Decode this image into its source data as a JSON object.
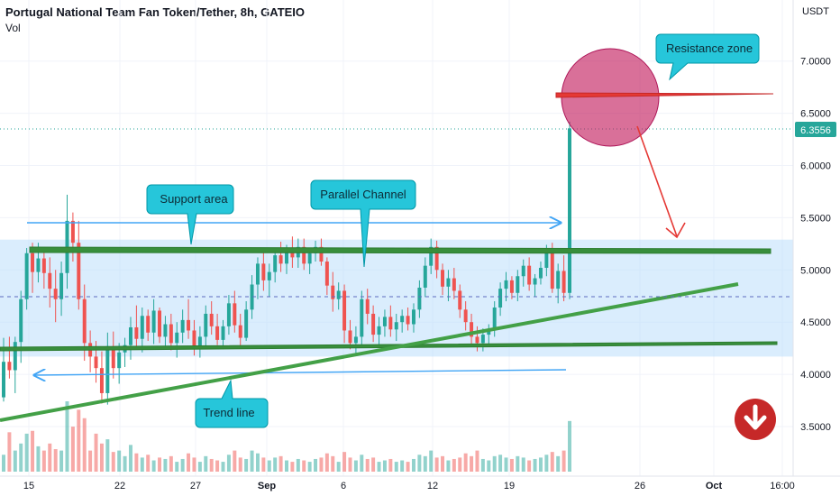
{
  "header": {
    "title": "Portugal National Team Fan Token/Tether, 8h, GATEIO",
    "volume_label": "Vol"
  },
  "axis": {
    "currency": "USDT",
    "y_ticks": [
      "7.0000",
      "6.5000",
      "6.0000",
      "5.5000",
      "5.0000",
      "4.5000",
      "4.0000",
      "3.5000"
    ],
    "x_ticks": [
      "15",
      "22",
      "27",
      "Sep",
      "6",
      "12",
      "19",
      "26",
      "Oct",
      "16:00"
    ],
    "last_price": "6.3556"
  },
  "annotations": {
    "resistance": "Resistance zone",
    "support": "Support area",
    "channel": "Parallel Channel",
    "trend": "Trend line"
  },
  "colors": {
    "up": "#26a69a",
    "down": "#ef5350",
    "channel_line": "#388e3c",
    "callout_bg": "#26c6da",
    "channel_fill": "#bbdefb",
    "circle": "#c2185b",
    "arrow": "#e53935",
    "price_tag": "#26a69a",
    "badge": "#c62828"
  },
  "icons": {
    "bearish_badge": "arrow-down-icon"
  },
  "chart_data": {
    "type": "candlestick",
    "title": "Portugal National Team Fan Token/Tether, 8h, GATEIO",
    "interval": "8h",
    "ylim": [
      3.0,
      7.3
    ],
    "x_ticks": [
      "15",
      "22",
      "27",
      "Sep",
      "6",
      "12",
      "19",
      "26",
      "Oct",
      "16:00"
    ],
    "last_close": 6.3556,
    "candles": [
      [
        3.78,
        4.35,
        3.74,
        4.12,
        "up"
      ],
      [
        4.12,
        4.36,
        3.96,
        4.04,
        "dn"
      ],
      [
        4.04,
        4.36,
        3.82,
        4.31,
        "up"
      ],
      [
        4.31,
        4.8,
        4.11,
        4.72,
        "up"
      ],
      [
        4.72,
        5.21,
        4.62,
        5.16,
        "up"
      ],
      [
        5.16,
        5.26,
        4.78,
        4.98,
        "dn"
      ],
      [
        4.98,
        5.26,
        4.88,
        5.11,
        "up"
      ],
      [
        5.11,
        5.22,
        4.82,
        4.97,
        "dn"
      ],
      [
        4.97,
        5.12,
        4.64,
        4.82,
        "dn"
      ],
      [
        4.82,
        5.0,
        4.5,
        4.72,
        "dn"
      ],
      [
        4.72,
        5.08,
        4.56,
        4.97,
        "up"
      ],
      [
        4.97,
        5.72,
        4.82,
        5.47,
        "up"
      ],
      [
        5.47,
        5.55,
        5.08,
        5.26,
        "dn"
      ],
      [
        5.26,
        5.47,
        4.62,
        4.72,
        "dn"
      ],
      [
        4.72,
        4.86,
        4.13,
        4.3,
        "dn"
      ],
      [
        4.3,
        4.42,
        4.02,
        4.17,
        "dn"
      ],
      [
        4.17,
        4.32,
        3.92,
        4.06,
        "dn"
      ],
      [
        4.06,
        4.22,
        3.72,
        3.82,
        "dn"
      ],
      [
        3.82,
        4.4,
        3.71,
        4.27,
        "up"
      ],
      [
        4.27,
        4.41,
        3.96,
        4.06,
        "dn"
      ],
      [
        4.06,
        4.3,
        3.91,
        4.21,
        "up"
      ],
      [
        4.21,
        4.35,
        4.07,
        4.28,
        "up"
      ],
      [
        4.28,
        4.55,
        4.14,
        4.45,
        "up"
      ],
      [
        4.45,
        4.66,
        4.24,
        4.34,
        "dn"
      ],
      [
        4.34,
        4.64,
        4.21,
        4.56,
        "up"
      ],
      [
        4.56,
        4.62,
        4.32,
        4.4,
        "dn"
      ],
      [
        4.4,
        4.72,
        4.29,
        4.61,
        "up"
      ],
      [
        4.61,
        4.64,
        4.3,
        4.36,
        "dn"
      ],
      [
        4.36,
        4.56,
        4.24,
        4.48,
        "up"
      ],
      [
        4.48,
        4.58,
        4.23,
        4.3,
        "dn"
      ],
      [
        4.3,
        4.5,
        4.16,
        4.4,
        "up"
      ],
      [
        4.4,
        4.62,
        4.3,
        4.52,
        "up"
      ],
      [
        4.52,
        4.72,
        4.34,
        4.42,
        "dn"
      ],
      [
        4.42,
        4.52,
        4.18,
        4.26,
        "dn"
      ],
      [
        4.26,
        4.46,
        4.16,
        4.36,
        "up"
      ],
      [
        4.36,
        4.66,
        4.27,
        4.58,
        "up"
      ],
      [
        4.58,
        4.7,
        4.38,
        4.46,
        "dn"
      ],
      [
        4.46,
        4.58,
        4.28,
        4.33,
        "dn"
      ],
      [
        4.33,
        4.52,
        4.24,
        4.46,
        "up"
      ],
      [
        4.46,
        4.76,
        4.38,
        4.68,
        "up"
      ],
      [
        4.68,
        4.8,
        4.4,
        4.47,
        "dn"
      ],
      [
        4.47,
        4.58,
        4.26,
        4.35,
        "dn"
      ],
      [
        4.35,
        4.7,
        4.32,
        4.62,
        "up"
      ],
      [
        4.62,
        4.95,
        4.53,
        4.86,
        "up"
      ],
      [
        4.86,
        5.12,
        4.72,
        5.06,
        "up"
      ],
      [
        5.06,
        5.18,
        4.8,
        4.9,
        "dn"
      ],
      [
        4.9,
        5.06,
        4.74,
        4.98,
        "up"
      ],
      [
        4.98,
        5.2,
        4.88,
        5.14,
        "up"
      ],
      [
        5.14,
        5.27,
        4.98,
        5.06,
        "dn"
      ],
      [
        5.06,
        5.24,
        4.96,
        5.18,
        "up"
      ],
      [
        5.18,
        5.32,
        5.02,
        5.12,
        "dn"
      ],
      [
        5.12,
        5.3,
        5.02,
        5.22,
        "up"
      ],
      [
        5.22,
        5.3,
        5.0,
        5.06,
        "dn"
      ],
      [
        5.06,
        5.21,
        4.96,
        5.16,
        "up"
      ],
      [
        5.16,
        5.28,
        5.08,
        5.22,
        "up"
      ],
      [
        5.22,
        5.3,
        5.04,
        5.08,
        "dn"
      ],
      [
        5.08,
        5.12,
        4.76,
        4.85,
        "dn"
      ],
      [
        4.85,
        4.98,
        4.6,
        4.72,
        "dn"
      ],
      [
        4.72,
        4.88,
        4.62,
        4.8,
        "up"
      ],
      [
        4.8,
        4.86,
        4.3,
        4.42,
        "dn"
      ],
      [
        4.42,
        4.52,
        4.24,
        4.3,
        "dn"
      ],
      [
        4.3,
        4.46,
        4.18,
        4.36,
        "up"
      ],
      [
        4.36,
        4.8,
        4.28,
        4.72,
        "up"
      ],
      [
        4.72,
        4.82,
        4.48,
        4.58,
        "dn"
      ],
      [
        4.58,
        4.66,
        4.31,
        4.38,
        "dn"
      ],
      [
        4.38,
        4.55,
        4.28,
        4.46,
        "up"
      ],
      [
        4.46,
        4.62,
        4.36,
        4.55,
        "up"
      ],
      [
        4.55,
        4.66,
        4.36,
        4.43,
        "dn"
      ],
      [
        4.43,
        4.58,
        4.32,
        4.5,
        "up"
      ],
      [
        4.5,
        4.62,
        4.4,
        4.56,
        "up"
      ],
      [
        4.56,
        4.64,
        4.42,
        4.48,
        "dn"
      ],
      [
        4.48,
        4.68,
        4.4,
        4.62,
        "up"
      ],
      [
        4.62,
        4.9,
        4.54,
        4.83,
        "up"
      ],
      [
        4.83,
        5.12,
        4.74,
        5.04,
        "up"
      ],
      [
        5.04,
        5.3,
        4.96,
        5.22,
        "up"
      ],
      [
        5.22,
        5.28,
        4.92,
        5.0,
        "dn"
      ],
      [
        5.0,
        5.06,
        4.76,
        4.84,
        "dn"
      ],
      [
        4.84,
        5.0,
        4.7,
        4.92,
        "up"
      ],
      [
        4.92,
        5.02,
        4.72,
        4.8,
        "dn"
      ],
      [
        4.8,
        4.86,
        4.54,
        4.62,
        "dn"
      ],
      [
        4.62,
        4.7,
        4.42,
        4.5,
        "dn"
      ],
      [
        4.5,
        4.58,
        4.26,
        4.36,
        "dn"
      ],
      [
        4.36,
        4.46,
        4.22,
        4.3,
        "dn"
      ],
      [
        4.3,
        4.44,
        4.22,
        4.38,
        "up"
      ],
      [
        4.38,
        4.48,
        4.28,
        4.42,
        "up"
      ],
      [
        4.42,
        4.7,
        4.36,
        4.64,
        "up"
      ],
      [
        4.64,
        4.88,
        4.56,
        4.82,
        "up"
      ],
      [
        4.82,
        4.98,
        4.7,
        4.9,
        "up"
      ],
      [
        4.9,
        4.94,
        4.72,
        4.78,
        "dn"
      ],
      [
        4.78,
        5.0,
        4.7,
        4.94,
        "up"
      ],
      [
        4.94,
        5.1,
        4.84,
        5.04,
        "up"
      ],
      [
        5.04,
        5.12,
        4.8,
        4.86,
        "dn"
      ],
      [
        4.86,
        4.96,
        4.74,
        4.92,
        "up"
      ],
      [
        4.92,
        5.08,
        4.86,
        5.02,
        "up"
      ],
      [
        5.02,
        5.24,
        4.94,
        5.16,
        "up"
      ],
      [
        5.16,
        5.26,
        4.78,
        4.82,
        "dn"
      ],
      [
        4.82,
        5.06,
        4.68,
        4.99,
        "up"
      ],
      [
        4.99,
        5.14,
        4.7,
        4.78,
        "dn"
      ],
      [
        4.78,
        6.42,
        4.72,
        6.3556,
        "up"
      ]
    ],
    "volume": [
      [
        24,
        "up"
      ],
      [
        56,
        "dn"
      ],
      [
        30,
        "up"
      ],
      [
        40,
        "up"
      ],
      [
        54,
        "up"
      ],
      [
        58,
        "dn"
      ],
      [
        36,
        "up"
      ],
      [
        30,
        "dn"
      ],
      [
        40,
        "dn"
      ],
      [
        32,
        "dn"
      ],
      [
        30,
        "up"
      ],
      [
        100,
        "up"
      ],
      [
        64,
        "dn"
      ],
      [
        88,
        "dn"
      ],
      [
        76,
        "dn"
      ],
      [
        30,
        "dn"
      ],
      [
        54,
        "dn"
      ],
      [
        40,
        "dn"
      ],
      [
        46,
        "up"
      ],
      [
        28,
        "dn"
      ],
      [
        30,
        "up"
      ],
      [
        22,
        "up"
      ],
      [
        38,
        "up"
      ],
      [
        26,
        "dn"
      ],
      [
        20,
        "up"
      ],
      [
        24,
        "dn"
      ],
      [
        16,
        "up"
      ],
      [
        20,
        "dn"
      ],
      [
        18,
        "up"
      ],
      [
        22,
        "dn"
      ],
      [
        14,
        "up"
      ],
      [
        18,
        "up"
      ],
      [
        26,
        "dn"
      ],
      [
        20,
        "dn"
      ],
      [
        14,
        "up"
      ],
      [
        22,
        "up"
      ],
      [
        18,
        "dn"
      ],
      [
        16,
        "dn"
      ],
      [
        14,
        "up"
      ],
      [
        24,
        "up"
      ],
      [
        30,
        "dn"
      ],
      [
        20,
        "dn"
      ],
      [
        18,
        "up"
      ],
      [
        30,
        "up"
      ],
      [
        26,
        "up"
      ],
      [
        20,
        "dn"
      ],
      [
        16,
        "up"
      ],
      [
        20,
        "up"
      ],
      [
        22,
        "dn"
      ],
      [
        16,
        "up"
      ],
      [
        14,
        "dn"
      ],
      [
        18,
        "up"
      ],
      [
        16,
        "dn"
      ],
      [
        14,
        "up"
      ],
      [
        18,
        "up"
      ],
      [
        20,
        "dn"
      ],
      [
        26,
        "dn"
      ],
      [
        22,
        "dn"
      ],
      [
        14,
        "up"
      ],
      [
        28,
        "dn"
      ],
      [
        20,
        "dn"
      ],
      [
        16,
        "up"
      ],
      [
        24,
        "up"
      ],
      [
        18,
        "dn"
      ],
      [
        20,
        "dn"
      ],
      [
        14,
        "up"
      ],
      [
        16,
        "up"
      ],
      [
        18,
        "dn"
      ],
      [
        14,
        "up"
      ],
      [
        16,
        "up"
      ],
      [
        14,
        "dn"
      ],
      [
        18,
        "up"
      ],
      [
        24,
        "up"
      ],
      [
        22,
        "up"
      ],
      [
        30,
        "up"
      ],
      [
        20,
        "dn"
      ],
      [
        22,
        "dn"
      ],
      [
        16,
        "up"
      ],
      [
        18,
        "dn"
      ],
      [
        20,
        "dn"
      ],
      [
        26,
        "dn"
      ],
      [
        22,
        "dn"
      ],
      [
        30,
        "dn"
      ],
      [
        18,
        "up"
      ],
      [
        16,
        "up"
      ],
      [
        22,
        "up"
      ],
      [
        24,
        "up"
      ],
      [
        20,
        "up"
      ],
      [
        18,
        "dn"
      ],
      [
        22,
        "up"
      ],
      [
        20,
        "up"
      ],
      [
        16,
        "dn"
      ],
      [
        18,
        "up"
      ],
      [
        20,
        "up"
      ],
      [
        24,
        "up"
      ],
      [
        28,
        "dn"
      ],
      [
        22,
        "up"
      ],
      [
        30,
        "dn"
      ],
      [
        72,
        "up"
      ]
    ]
  }
}
